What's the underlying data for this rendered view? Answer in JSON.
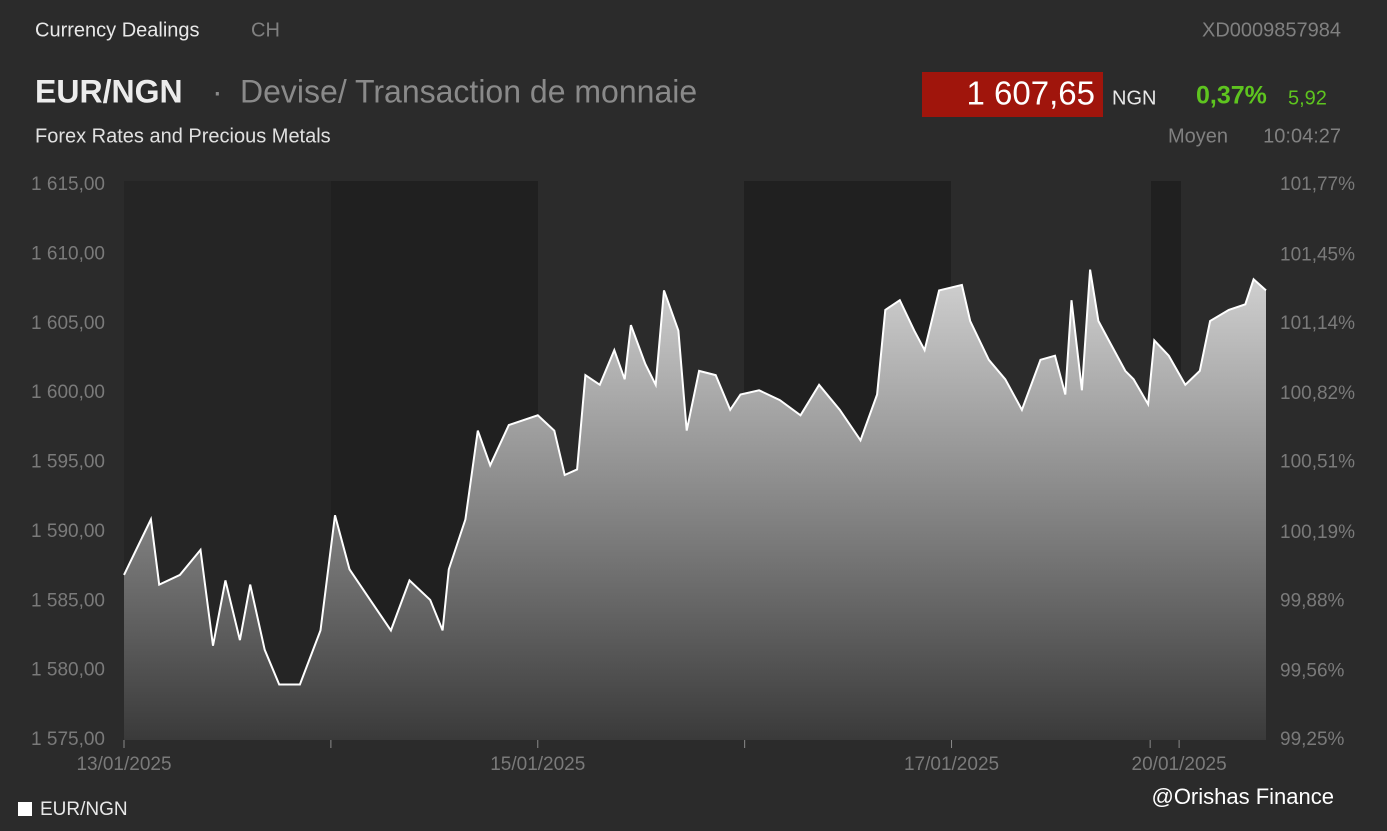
{
  "header": {
    "section": "Currency Dealings",
    "market": "CH",
    "isin": "XD0009857984",
    "symbol": "EUR/NGN",
    "separator": "·",
    "description": "Devise/ Transaction de monnaie",
    "price": "1 607,65",
    "currency": "NGN",
    "change_pct": "0,37%",
    "change_abs": "5,92",
    "source": "Forex Rates and Precious Metals",
    "quote_type": "Moyen",
    "time": "10:04:27"
  },
  "chart_data": {
    "type": "area",
    "x": [
      0,
      0.13,
      0.17,
      0.27,
      0.37,
      0.43,
      0.49,
      0.56,
      0.61,
      0.68,
      0.75,
      0.85,
      0.95,
      1.02,
      1.09,
      1.19,
      1.29,
      1.38,
      1.48,
      1.54,
      1.57,
      1.65,
      1.71,
      1.77,
      1.86,
      2,
      2.08,
      2.13,
      2.19,
      2.23,
      2.3,
      2.37,
      2.42,
      2.45,
      2.52,
      2.57,
      2.61,
      2.68,
      2.72,
      2.78,
      2.86,
      2.93,
      2.98,
      3.07,
      3.17,
      3.27,
      3.36,
      3.46,
      3.56,
      3.64,
      3.68,
      3.75,
      3.82,
      3.87,
      3.94,
      4.05,
      4.09,
      4.18,
      4.26,
      4.34,
      4.43,
      4.5,
      4.55,
      4.58,
      4.63,
      4.67,
      4.71,
      4.76,
      4.84,
      4.88,
      4.95,
      4.98,
      5.05,
      5.13,
      5.2,
      5.25,
      5.34,
      5.42,
      5.46,
      5.52
    ],
    "series": [
      {
        "name": "EUR/NGN",
        "color": "#ffffff",
        "values": [
          1586.9,
          1590.9,
          1586.2,
          1586.9,
          1588.7,
          1581.8,
          1586.5,
          1582.2,
          1586.2,
          1581.5,
          1579.0,
          1579.0,
          1582.9,
          1591.2,
          1587.3,
          1585.1,
          1582.9,
          1586.5,
          1585.1,
          1582.9,
          1587.3,
          1590.9,
          1597.3,
          1594.8,
          1597.7,
          1598.4,
          1597.3,
          1594.1,
          1594.5,
          1601.3,
          1600.6,
          1603.1,
          1601.0,
          1604.9,
          1602.1,
          1600.6,
          1607.4,
          1604.5,
          1597.3,
          1601.6,
          1601.3,
          1598.8,
          1599.9,
          1600.2,
          1599.5,
          1598.4,
          1600.6,
          1598.8,
          1596.6,
          1599.9,
          1606.0,
          1606.7,
          1604.5,
          1603.1,
          1607.4,
          1607.8,
          1605.2,
          1602.4,
          1601.0,
          1598.8,
          1602.4,
          1602.7,
          1599.9,
          1606.7,
          1600.2,
          1608.9,
          1605.2,
          1603.8,
          1601.6,
          1601.0,
          1599.2,
          1603.8,
          1602.7,
          1600.6,
          1601.6,
          1605.2,
          1606.0,
          1606.4,
          1608.2,
          1607.4
        ]
      }
    ],
    "xlim": [
      0,
      5.52
    ],
    "xticks": [
      {
        "value": 0,
        "label": "13/01/2025"
      },
      1,
      {
        "value": 2,
        "label": "15/01/2025"
      },
      3,
      {
        "value": 4,
        "label": "17/01/2025"
      },
      4.96,
      {
        "value": 5.1,
        "label": "20/01/2025"
      }
    ],
    "ylim": [
      1575,
      1615
    ],
    "yticks": [
      {
        "value": 1575,
        "label": "1 575,00"
      },
      {
        "value": 1580,
        "label": "1 580,00"
      },
      {
        "value": 1585,
        "label": "1 585,00"
      },
      {
        "value": 1590,
        "label": "1 590,00"
      },
      {
        "value": 1595,
        "label": "1 595,00"
      },
      {
        "value": 1600,
        "label": "1 600,00"
      },
      {
        "value": 1605,
        "label": "1 605,00"
      },
      {
        "value": 1610,
        "label": "1 610,00"
      },
      {
        "value": 1615,
        "label": "1 615,00"
      }
    ],
    "y2lim": [
      99.25,
      101.77
    ],
    "y2ticks": [
      {
        "value": 99.25,
        "label": "99,25%"
      },
      {
        "value": 99.56,
        "label": "99,56%"
      },
      {
        "value": 99.88,
        "label": "99,88%"
      },
      {
        "value": 100.19,
        "label": "100,19%"
      },
      {
        "value": 100.51,
        "label": "100,51%"
      },
      {
        "value": 100.82,
        "label": "100,82%"
      },
      {
        "value": 101.14,
        "label": "101,14%"
      },
      {
        "value": 101.45,
        "label": "101,45%"
      },
      {
        "value": 101.77,
        "label": "101,77%"
      }
    ],
    "grid": false
  },
  "watermark": "@Orishas Finance"
}
